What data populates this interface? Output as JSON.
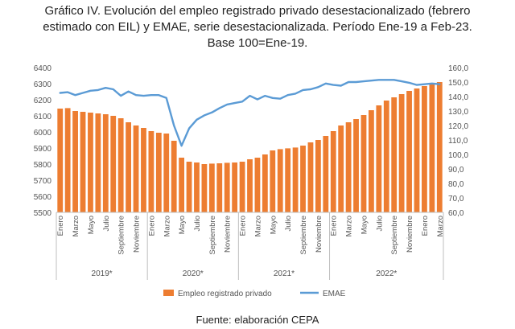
{
  "title_lines": [
    "Gráfico IV. Evolución del empleo registrado privado desestacionalizado (febrero",
    "estimado con EIL) y EMAE, serie desestacionalizada. Período Ene-19 a Feb-23.",
    "Base 100=Ene-19."
  ],
  "source": "Fuente: elaboración CEPA",
  "chart_data": {
    "type": "bar",
    "months": [
      "Enero",
      "Febrero",
      "Marzo",
      "Abril",
      "Mayo",
      "Junio",
      "Julio",
      "Agosto",
      "Septiembre",
      "Octubre",
      "Noviembre",
      "Diciembre",
      "Enero",
      "Febrero",
      "Marzo",
      "Abril",
      "Mayo",
      "Junio",
      "Julio",
      "Agosto",
      "Septiembre",
      "Octubre",
      "Noviembre",
      "Diciembre",
      "Enero",
      "Febrero",
      "Marzo",
      "Abril",
      "Mayo",
      "Junio",
      "Julio",
      "Agosto",
      "Septiembre",
      "Octubre",
      "Noviembre",
      "Diciembre",
      "Enero",
      "Febrero",
      "Marzo",
      "Abril",
      "Mayo",
      "Junio",
      "Julio",
      "Agosto",
      "Septiembre",
      "Octubre",
      "Noviembre",
      "Diciembre",
      "Enero",
      "Febrero",
      "Marzo"
    ],
    "month_tick_labels": [
      "Enero",
      "",
      "Marzo",
      "",
      "Mayo",
      "",
      "Julio",
      "",
      "Septiembre",
      "",
      "Noviembre",
      "",
      "Enero",
      "",
      "Marzo",
      "",
      "Mayo",
      "",
      "Julio",
      "",
      "Septiembre",
      "",
      "Noviembre",
      "",
      "Enero",
      "",
      "Marzo",
      "",
      "Mayo",
      "",
      "Julio",
      "",
      "Septiembre",
      "",
      "Noviembre",
      "",
      "Enero",
      "",
      "Marzo",
      "",
      "Mayo",
      "",
      "Julio",
      "",
      "Septiembre",
      "",
      "Noviembre",
      "",
      "Enero",
      "",
      "Marzo"
    ],
    "years": [
      {
        "label": "2019*",
        "start": 0,
        "end": 11
      },
      {
        "label": "2020*",
        "start": 12,
        "end": 23
      },
      {
        "label": "2021*",
        "start": 24,
        "end": 35
      },
      {
        "label": "2022*",
        "start": 36,
        "end": 50
      }
    ],
    "series": [
      {
        "name": "Empleo registrado privado",
        "type": "bar",
        "axis": "left",
        "color": "#ED7D31",
        "values": [
          6145,
          6148,
          6130,
          6125,
          6120,
          6115,
          6110,
          6100,
          6085,
          6060,
          6040,
          6025,
          6005,
          5995,
          5990,
          5945,
          5840,
          5815,
          5810,
          5800,
          5803,
          5805,
          5808,
          5810,
          5815,
          5830,
          5840,
          5860,
          5885,
          5893,
          5898,
          5903,
          5915,
          5935,
          5950,
          5975,
          6005,
          6040,
          6060,
          6080,
          6105,
          6135,
          6165,
          6195,
          6215,
          6235,
          6255,
          6270,
          6285,
          6295,
          6310
        ]
      },
      {
        "name": "EMAE",
        "type": "line",
        "axis": "right",
        "color": "#5B9BD5",
        "values": [
          142.5,
          143.0,
          141.0,
          142.5,
          144.0,
          144.5,
          146.0,
          145.0,
          140.5,
          143.5,
          141.0,
          140.5,
          141.0,
          141.0,
          139.0,
          120.0,
          106.0,
          118.0,
          124.0,
          127.0,
          129.0,
          132.0,
          134.5,
          135.5,
          136.5,
          140.5,
          138.0,
          140.5,
          139.0,
          138.5,
          141.0,
          142.0,
          144.5,
          145.0,
          146.5,
          149.0,
          148.0,
          147.5,
          150.0,
          150.0,
          150.5,
          151.0,
          151.5,
          151.5,
          151.5,
          150.5,
          149.5,
          148.0,
          148.5,
          149.0,
          148.5
        ]
      }
    ],
    "y_left": {
      "min": 5500,
      "max": 6400,
      "step": 100,
      "ticks": [
        "5500",
        "5600",
        "5700",
        "5800",
        "5900",
        "6000",
        "6100",
        "6200",
        "6300",
        "6400"
      ]
    },
    "y_right": {
      "min": 60,
      "max": 160,
      "step": 10,
      "ticks": [
        "60,0",
        "70,0",
        "80,0",
        "90,0",
        "100,0",
        "110,0",
        "120,0",
        "130,0",
        "140,0",
        "150,0",
        "160,0"
      ]
    },
    "legend_position": "bottom",
    "grid": false
  }
}
